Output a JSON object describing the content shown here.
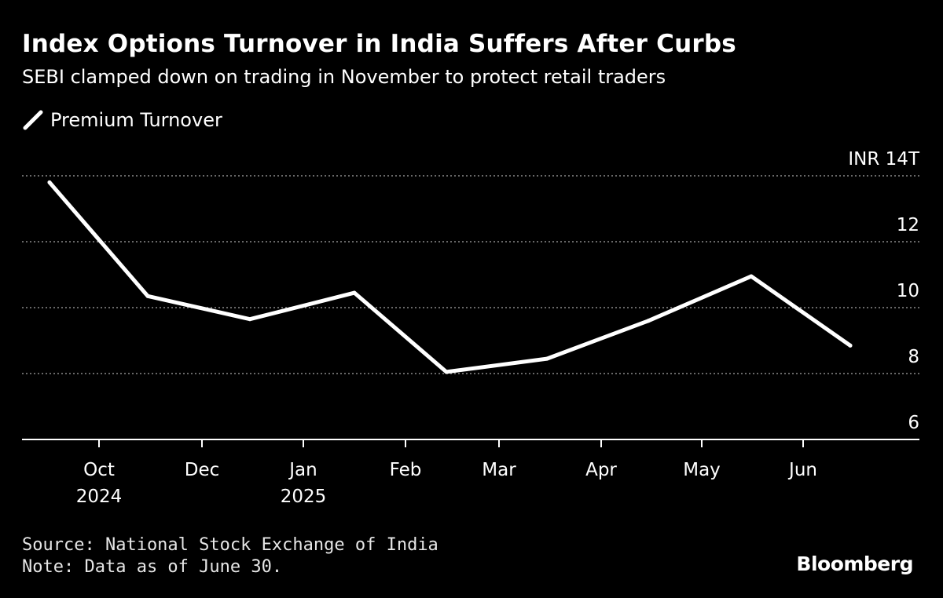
{
  "header": {
    "title": "Index Options Turnover in India Suffers After Curbs",
    "subtitle": "SEBI clamped down on trading in November to protect retail traders"
  },
  "legend": {
    "label": "Premium Turnover"
  },
  "footer": {
    "source": "Source: National Stock Exchange of India",
    "note": "Note: Data as of June 30.",
    "brand": "Bloomberg"
  },
  "chart_data": {
    "type": "line",
    "title": "Index Options Turnover in India Suffers After Curbs",
    "subtitle": "SEBI clamped down on trading in November to protect retail traders",
    "xlabel": "",
    "ylabel": "",
    "unit_label": "INR 14T",
    "ylim": [
      6,
      14
    ],
    "yticks": [
      {
        "value": 14,
        "label": "INR 14T"
      },
      {
        "value": 12,
        "label": "12"
      },
      {
        "value": 10,
        "label": "10"
      },
      {
        "value": 8,
        "label": "8"
      },
      {
        "value": 6,
        "label": "6"
      }
    ],
    "xticks": [
      {
        "month_index": 0,
        "label": "Oct",
        "sublabel": "2024"
      },
      {
        "month_index": 2,
        "label": "Dec",
        "sublabel": ""
      },
      {
        "month_index": 3,
        "label": "Jan",
        "sublabel": "2025"
      },
      {
        "month_index": 4,
        "label": "Feb",
        "sublabel": ""
      },
      {
        "month_index": 5,
        "label": "Mar",
        "sublabel": ""
      },
      {
        "month_index": 6,
        "label": "Apr",
        "sublabel": ""
      },
      {
        "month_index": 7,
        "label": "May",
        "sublabel": ""
      },
      {
        "month_index": 8,
        "label": "Jun",
        "sublabel": ""
      }
    ],
    "x_domain": [
      0,
      9.3
    ],
    "grid": true,
    "legend_position": "top-left",
    "series": [
      {
        "name": "Premium Turnover",
        "color": "#ffffff",
        "points": [
          {
            "x": 0.0,
            "y": 13.8
          },
          {
            "x": 1.0,
            "y": 10.35
          },
          {
            "x": 2.0,
            "y": 9.65
          },
          {
            "x": 3.0,
            "y": 10.45
          },
          {
            "x": 4.0,
            "y": 8.05
          },
          {
            "x": 5.0,
            "y": 8.45
          },
          {
            "x": 6.0,
            "y": 9.6
          },
          {
            "x": 7.0,
            "y": 10.95
          },
          {
            "x": 8.0,
            "y": 8.85
          }
        ]
      }
    ]
  },
  "colors": {
    "background": "#000000",
    "text": "#ffffff",
    "grid": "#8a8a8a"
  }
}
